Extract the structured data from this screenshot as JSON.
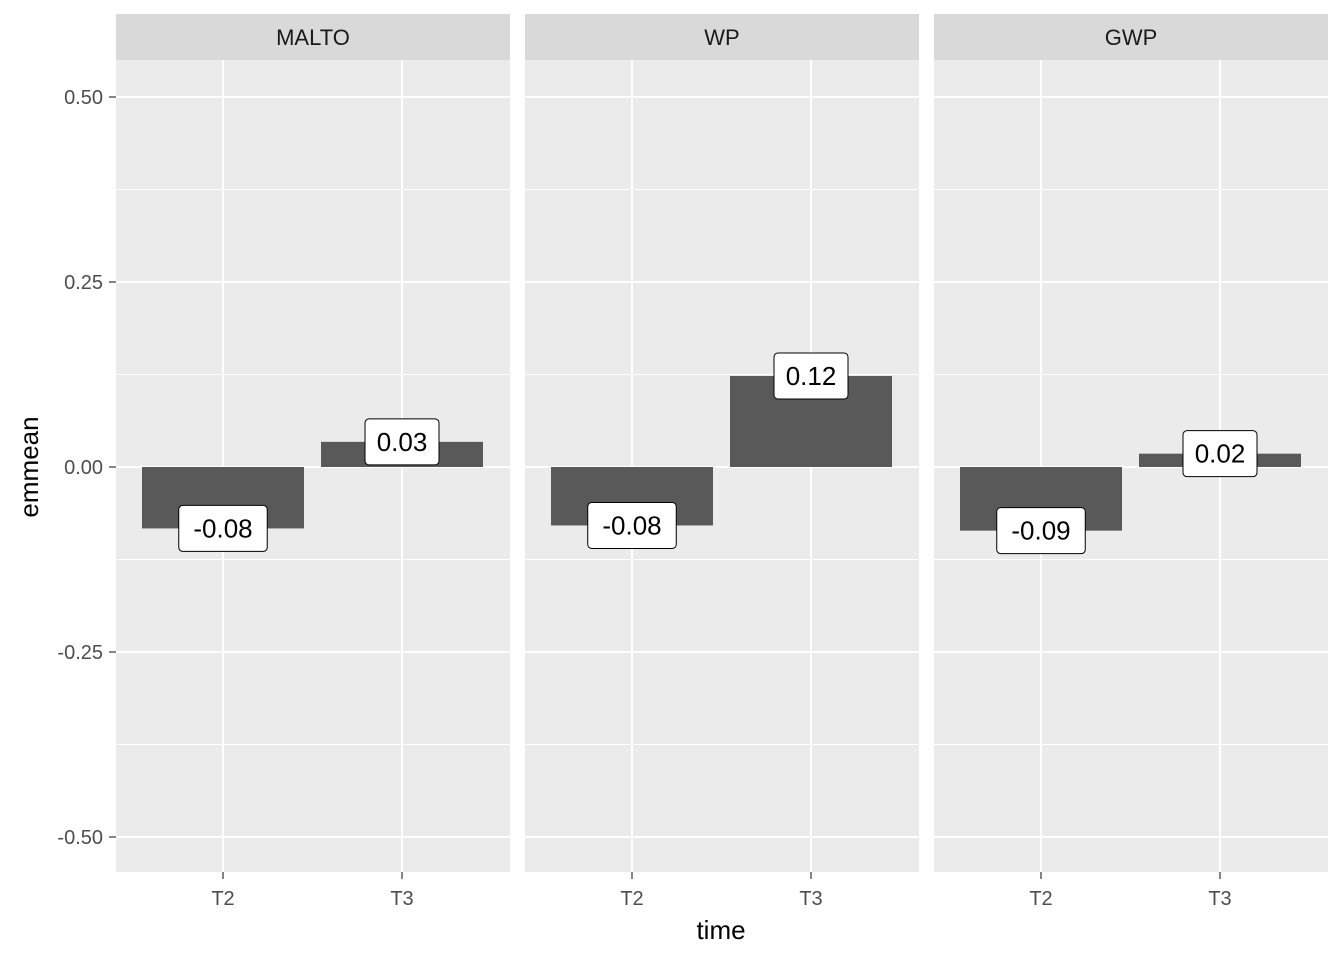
{
  "chart_data": {
    "type": "bar",
    "facet_by": "panel",
    "panels": [
      {
        "name": "MALTO",
        "categories": [
          "T2",
          "T3"
        ],
        "values": [
          -0.083,
          0.034
        ],
        "labels": [
          "-0.08",
          "0.03"
        ]
      },
      {
        "name": "WP",
        "categories": [
          "T2",
          "T3"
        ],
        "values": [
          -0.079,
          0.123
        ],
        "labels": [
          "-0.08",
          "0.12"
        ]
      },
      {
        "name": "GWP",
        "categories": [
          "T2",
          "T3"
        ],
        "values": [
          -0.086,
          0.018
        ],
        "labels": [
          "-0.09",
          "0.02"
        ]
      }
    ],
    "xlabel": "time",
    "ylabel": "emmean",
    "ylim": [
      -0.55,
      0.55
    ],
    "yticks": [
      0.5,
      0.25,
      0.0,
      -0.25,
      -0.5
    ],
    "ytick_labels": [
      "0.50",
      "0.25",
      "0.00",
      "-0.25",
      "-0.50"
    ],
    "grid": true,
    "colors": {
      "bar": "#595959",
      "panel_background": "#ebebeb",
      "strip_background": "#d9d9d9",
      "grid": "#ffffff",
      "label_fill": "#ffffff"
    }
  }
}
